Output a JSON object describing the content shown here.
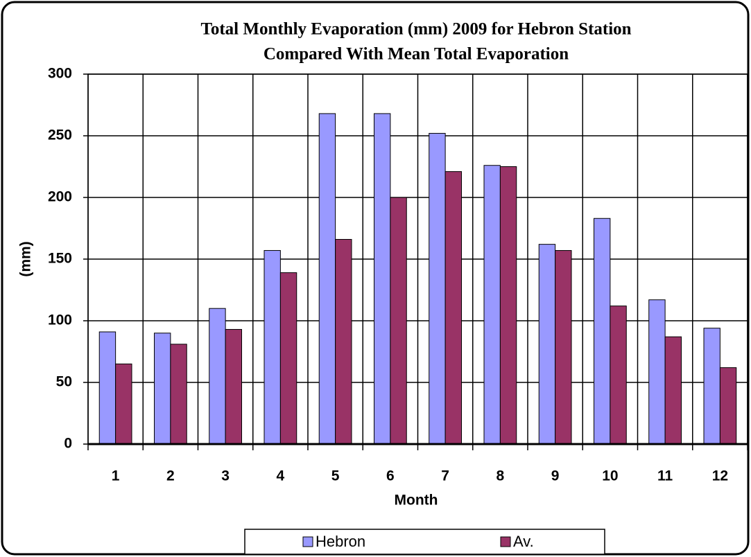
{
  "chart_data": {
    "type": "bar",
    "title": [
      "Total Monthly Evaporation (mm) 2009 for Hebron Station",
      "Compared With Mean Total Evaporation"
    ],
    "x_label": "Month",
    "y_label": "(mm)",
    "categories": [
      "1",
      "2",
      "3",
      "4",
      "5",
      "6",
      "7",
      "8",
      "9",
      "10",
      "11",
      "12"
    ],
    "series": [
      {
        "name": "Hebron",
        "color": "#9999ff",
        "values": [
          91,
          90,
          110,
          157,
          268,
          268,
          252,
          226,
          162,
          183,
          117,
          94
        ]
      },
      {
        "name": "Av.",
        "color": "#993366",
        "values": [
          65,
          81,
          93,
          139,
          166,
          200,
          221,
          225,
          157,
          112,
          87,
          62
        ]
      }
    ],
    "ylim": [
      0,
      300
    ],
    "yticks": [
      0,
      50,
      100,
      150,
      200,
      250,
      300
    ],
    "grid": true,
    "legend": "bottom"
  }
}
